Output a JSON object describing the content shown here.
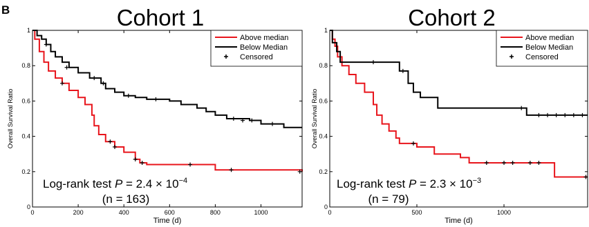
{
  "panel_label": "B",
  "chart_data": [
    {
      "type": "step",
      "title": "Cohort 1",
      "xlabel": "Time (d)",
      "ylabel": "Overall Survival Ratio",
      "xlim": [
        0,
        1180
      ],
      "xticks": [
        0,
        200,
        400,
        600,
        800,
        1000
      ],
      "ylim": [
        0,
        1
      ],
      "yticks": [
        0,
        0.2,
        0.4,
        0.6,
        0.8,
        1
      ],
      "legend": "upper right",
      "censored_label": "Censored",
      "annotation": [
        "Log-rank test ",
        "P",
        " = 2.4 × 10",
        "−4"
      ],
      "n_label": "(n = 163)",
      "series": [
        {
          "name": "Above median",
          "color": "#e8141b",
          "x": [
            0,
            10,
            30,
            50,
            70,
            100,
            130,
            160,
            200,
            230,
            260,
            270,
            290,
            320,
            360,
            400,
            450,
            470,
            500,
            800,
            1180
          ],
          "values": [
            1,
            0.95,
            0.88,
            0.82,
            0.77,
            0.73,
            0.7,
            0.66,
            0.62,
            0.58,
            0.52,
            0.46,
            0.41,
            0.37,
            0.34,
            0.31,
            0.27,
            0.25,
            0.24,
            0.21,
            0.2
          ],
          "censored_x": [
            130,
            340,
            360,
            450,
            480,
            690,
            870,
            1170
          ],
          "censored_y": [
            0.7,
            0.37,
            0.34,
            0.27,
            0.25,
            0.24,
            0.21,
            0.2
          ]
        },
        {
          "name": "Below Median",
          "color": "#000000",
          "x": [
            0,
            20,
            40,
            60,
            80,
            100,
            130,
            160,
            200,
            250,
            300,
            320,
            360,
            400,
            450,
            500,
            600,
            650,
            720,
            760,
            800,
            850,
            950,
            1000,
            1100,
            1180
          ],
          "values": [
            1,
            0.97,
            0.95,
            0.92,
            0.88,
            0.85,
            0.82,
            0.79,
            0.76,
            0.73,
            0.7,
            0.67,
            0.65,
            0.63,
            0.62,
            0.61,
            0.6,
            0.58,
            0.56,
            0.54,
            0.52,
            0.5,
            0.49,
            0.47,
            0.45,
            0.45
          ],
          "censored_x": [
            60,
            150,
            270,
            310,
            420,
            540,
            880,
            920,
            960,
            1050
          ],
          "censored_y": [
            0.92,
            0.79,
            0.73,
            0.7,
            0.63,
            0.61,
            0.5,
            0.49,
            0.49,
            0.47
          ]
        }
      ]
    },
    {
      "type": "step",
      "title": "Cohort 2",
      "xlabel": "Time (d)",
      "ylabel": "Overall Survival Ratio",
      "xlim": [
        0,
        1480
      ],
      "xticks": [
        0,
        500,
        1000
      ],
      "ylim": [
        0,
        1
      ],
      "yticks": [
        0,
        0.2,
        0.4,
        0.6,
        0.8,
        1
      ],
      "legend": "upper right",
      "censored_label": "Censored",
      "annotation": [
        "Log-rank test ",
        "P",
        " = 2.3 × 10",
        "−3"
      ],
      "n_label": "(n = 79)",
      "series": [
        {
          "name": "Above median",
          "color": "#e8141b",
          "x": [
            0,
            15,
            30,
            45,
            70,
            110,
            150,
            200,
            250,
            270,
            300,
            340,
            380,
            400,
            500,
            600,
            750,
            800,
            1290,
            1480
          ],
          "values": [
            1,
            0.95,
            0.91,
            0.85,
            0.8,
            0.75,
            0.7,
            0.65,
            0.58,
            0.52,
            0.47,
            0.43,
            0.39,
            0.36,
            0.34,
            0.3,
            0.28,
            0.25,
            0.17,
            0.17
          ],
          "censored_x": [
            480,
            900,
            1000,
            1050,
            1150,
            1200,
            1470
          ],
          "censored_y": [
            0.36,
            0.25,
            0.25,
            0.25,
            0.25,
            0.25,
            0.17
          ]
        },
        {
          "name": "Below Median",
          "color": "#000000",
          "x": [
            0,
            15,
            40,
            60,
            400,
            450,
            480,
            520,
            550,
            620,
            1130,
            1480
          ],
          "values": [
            1,
            0.93,
            0.88,
            0.82,
            0.77,
            0.7,
            0.65,
            0.62,
            0.62,
            0.56,
            0.52,
            0.52
          ],
          "censored_x": [
            250,
            420,
            1100,
            1200,
            1250,
            1300,
            1350,
            1400,
            1450
          ],
          "censored_y": [
            0.82,
            0.77,
            0.56,
            0.52,
            0.52,
            0.52,
            0.52,
            0.52,
            0.52
          ]
        }
      ]
    }
  ]
}
